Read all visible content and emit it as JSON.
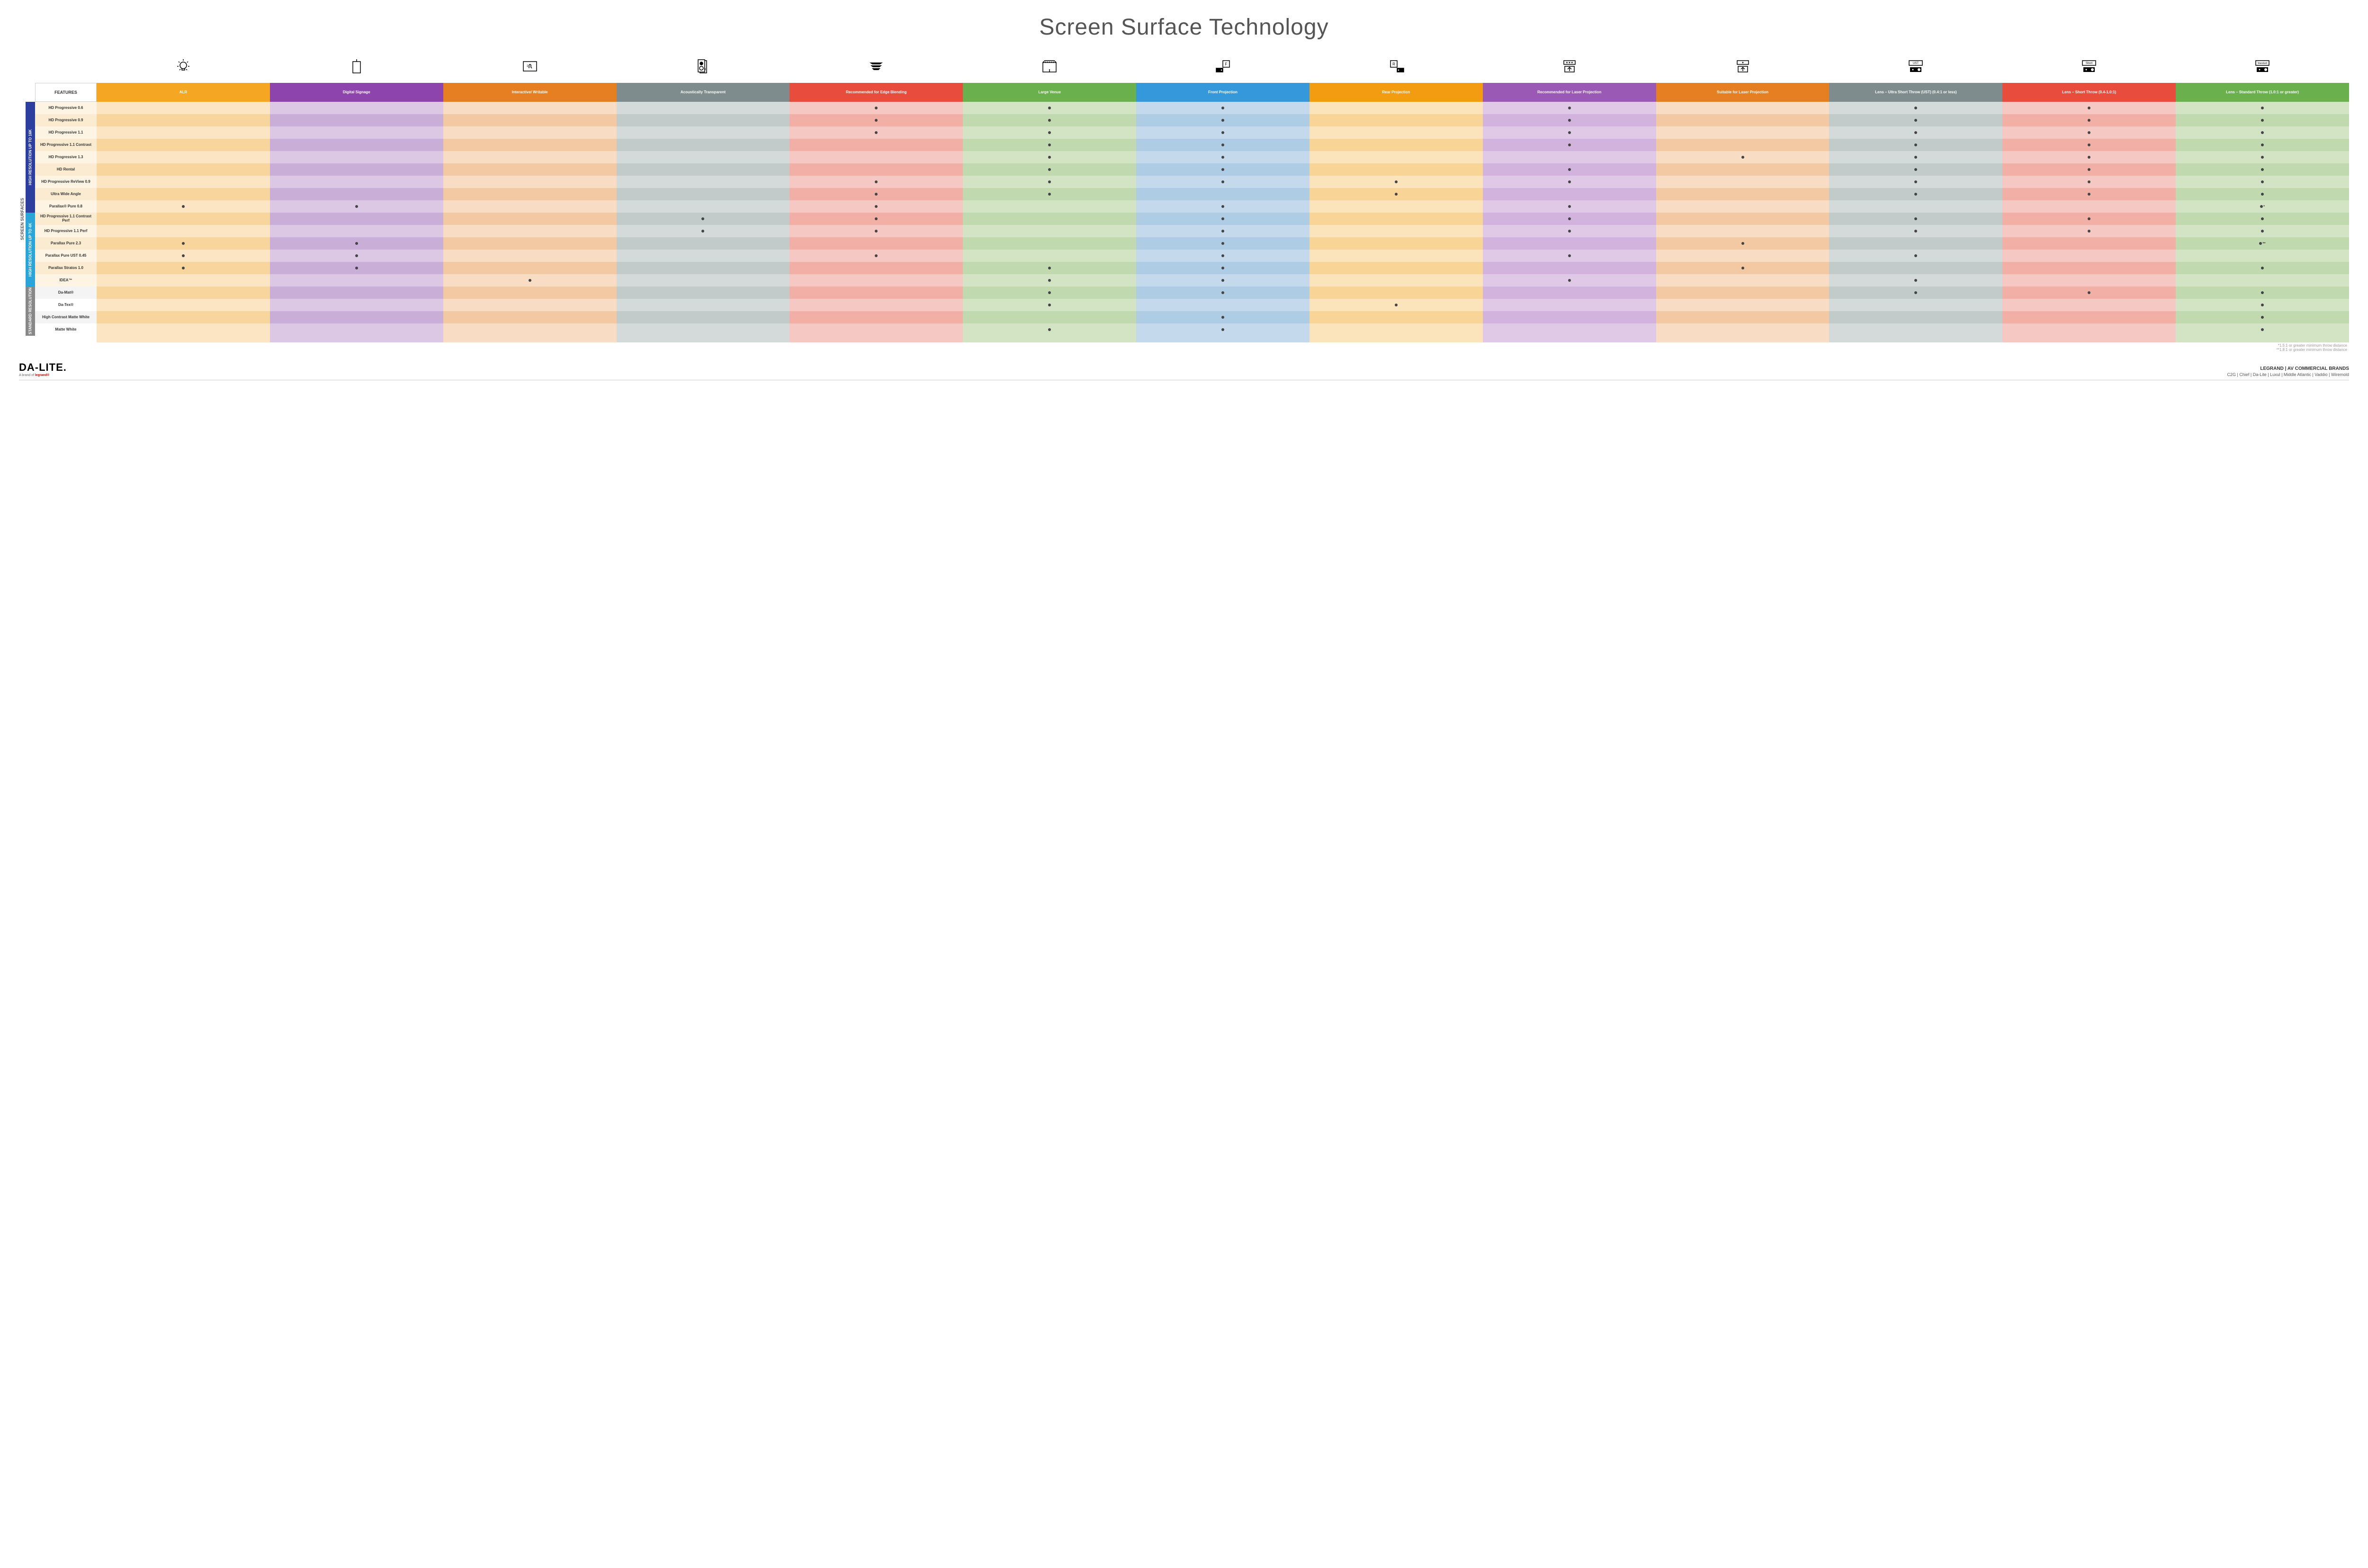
{
  "title": "Screen Surface Technology",
  "feature_header": "FEATURES",
  "side_main_label": "SCREEN SURFACES",
  "columns": [
    {
      "label": "ALR",
      "color": "#f5a623",
      "lt": "#fce5c3",
      "dk": "#f9d59e",
      "icon": "bulb"
    },
    {
      "label": "Digital Signage",
      "color": "#8e44ad",
      "lt": "#dcc8e5",
      "dk": "#c9aed8",
      "icon": "signage"
    },
    {
      "label": "Interactive/ Writable",
      "color": "#e67e22",
      "lt": "#f8dcc4",
      "dk": "#f3c9a3",
      "icon": "touch"
    },
    {
      "label": "Acoustically Transparent",
      "color": "#7f8c8d",
      "lt": "#d4dad9",
      "dk": "#c2cbc9",
      "icon": "speaker"
    },
    {
      "label": "Recommended for Edge Blending",
      "color": "#e74c3c",
      "lt": "#f6c8c3",
      "dk": "#f1afa6",
      "icon": "blend"
    },
    {
      "label": "Large Venue",
      "color": "#6ab04c",
      "lt": "#d3e4c5",
      "dk": "#c1d9ae",
      "icon": "venue"
    },
    {
      "label": "Front Projection",
      "color": "#3498db",
      "lt": "#c4d9ec",
      "dk": "#aecce4",
      "icon": "front"
    },
    {
      "label": "Rear Projection",
      "color": "#f39c12",
      "lt": "#fbe3bb",
      "dk": "#f8d497",
      "icon": "rear"
    },
    {
      "label": "Recommended for Laser Projection",
      "color": "#9b59b6",
      "lt": "#dfc9e7",
      "dk": "#d1b3de",
      "icon": "laser3"
    },
    {
      "label": "Suitable for Laser Projection",
      "color": "#e67e22",
      "lt": "#f8dcc4",
      "dk": "#f3c9a3",
      "icon": "laser1"
    },
    {
      "label": "Lens – Ultra Short Throw (UST) (0.4:1 or less)",
      "color": "#7f8c8d",
      "lt": "#d4dad9",
      "dk": "#c2cbc9",
      "icon": "ust"
    },
    {
      "label": "Lens – Short Throw (0.4-1.0:1)",
      "color": "#e74c3c",
      "lt": "#f6c8c3",
      "dk": "#f1afa6",
      "icon": "short"
    },
    {
      "label": "Lens – Standard Throw (1.0:1 or greater)",
      "color": "#6ab04c",
      "lt": "#d3e4c5",
      "dk": "#c1d9ae",
      "icon": "standard"
    }
  ],
  "groups": [
    {
      "label": "HIGH RESOLUTION UP TO 16K",
      "color": "#2c3e9e",
      "feat_lt": "#fdf4e3",
      "feat_dk": "#fbecd1",
      "rows": [
        {
          "name": "HD Progressive 0.6",
          "dots": [
            0,
            0,
            0,
            0,
            1,
            1,
            1,
            0,
            1,
            0,
            1,
            1,
            1
          ]
        },
        {
          "name": "HD Progressive 0.9",
          "dots": [
            0,
            0,
            0,
            0,
            1,
            1,
            1,
            0,
            1,
            0,
            1,
            1,
            1
          ]
        },
        {
          "name": "HD Progressive 1.1",
          "dots": [
            0,
            0,
            0,
            0,
            1,
            1,
            1,
            0,
            1,
            0,
            1,
            1,
            1
          ]
        },
        {
          "name": "HD Progressive 1.1 Contrast",
          "dots": [
            0,
            0,
            0,
            0,
            0,
            1,
            1,
            0,
            1,
            0,
            1,
            1,
            1
          ]
        },
        {
          "name": "HD Progressive 1.3",
          "dots": [
            0,
            0,
            0,
            0,
            0,
            1,
            1,
            0,
            0,
            1,
            1,
            1,
            1
          ]
        },
        {
          "name": "HD Rental",
          "dots": [
            0,
            0,
            0,
            0,
            0,
            1,
            1,
            0,
            1,
            0,
            1,
            1,
            1
          ]
        },
        {
          "name": "HD Progressive ReView 0.9",
          "dots": [
            0,
            0,
            0,
            0,
            1,
            1,
            1,
            1,
            1,
            0,
            1,
            1,
            1
          ]
        },
        {
          "name": "Ultra Wide Angle",
          "dots": [
            0,
            0,
            0,
            0,
            1,
            1,
            0,
            1,
            0,
            0,
            1,
            1,
            1
          ]
        },
        {
          "name": "Parallax® Pure 0.8",
          "dots": [
            1,
            1,
            0,
            0,
            1,
            0,
            1,
            0,
            1,
            0,
            0,
            0,
            "*"
          ]
        }
      ]
    },
    {
      "label": "HIGH RESOLUTION UP TO 4K",
      "color": "#2ba5d8",
      "feat_lt": "#fdf4e3",
      "feat_dk": "#fbecd1",
      "rows": [
        {
          "name": "HD Progressive 1.1 Contrast Perf",
          "dots": [
            0,
            0,
            0,
            1,
            1,
            0,
            1,
            0,
            1,
            0,
            1,
            1,
            1
          ]
        },
        {
          "name": "HD Progressive 1.1 Perf",
          "dots": [
            0,
            0,
            0,
            1,
            1,
            0,
            1,
            0,
            1,
            0,
            1,
            1,
            1
          ]
        },
        {
          "name": "Parallax Pure 2.3",
          "dots": [
            1,
            1,
            0,
            0,
            0,
            0,
            1,
            0,
            0,
            1,
            0,
            0,
            "**"
          ]
        },
        {
          "name": "Parallax Pure UST 0.45",
          "dots": [
            1,
            1,
            0,
            0,
            1,
            0,
            1,
            0,
            1,
            0,
            1,
            0,
            0
          ]
        },
        {
          "name": "Parallax Stratos 1.0",
          "dots": [
            1,
            1,
            0,
            0,
            0,
            1,
            1,
            0,
            0,
            1,
            0,
            0,
            1
          ]
        },
        {
          "name": "IDEA™",
          "dots": [
            0,
            0,
            1,
            0,
            0,
            1,
            1,
            0,
            1,
            0,
            1,
            0,
            0
          ]
        }
      ]
    },
    {
      "label": "STANDARD RESOLUTION",
      "color": "#888888",
      "feat_lt": "#ffffff",
      "feat_dk": "#f4f4f4",
      "rows": [
        {
          "name": "Da-Mat®",
          "dots": [
            0,
            0,
            0,
            0,
            0,
            1,
            1,
            0,
            0,
            0,
            1,
            1,
            1
          ]
        },
        {
          "name": "Da-Tex®",
          "dots": [
            0,
            0,
            0,
            0,
            0,
            1,
            0,
            1,
            0,
            0,
            0,
            0,
            1
          ]
        },
        {
          "name": "High Contrast Matte White",
          "dots": [
            0,
            0,
            0,
            0,
            0,
            0,
            1,
            0,
            0,
            0,
            0,
            0,
            1
          ]
        },
        {
          "name": "Matte White",
          "dots": [
            0,
            0,
            0,
            0,
            0,
            1,
            1,
            0,
            0,
            0,
            0,
            0,
            1
          ]
        }
      ]
    }
  ],
  "footnotes": [
    "*1.5:1 or greater minimum throw distance",
    "**1.8:1 or greater minimum throw distance"
  ],
  "logo": {
    "main": "DA-LITE.",
    "sub_prefix": "A brand of ",
    "sub_brand": "legrand®"
  },
  "brands": {
    "top": "LEGRAND | AV COMMERCIAL BRANDS",
    "list": "C2G  |  Chief  |  Da-Lite  |  Luxul  |  Middle Atlantic  |  Vaddio  |  Wiremold"
  }
}
